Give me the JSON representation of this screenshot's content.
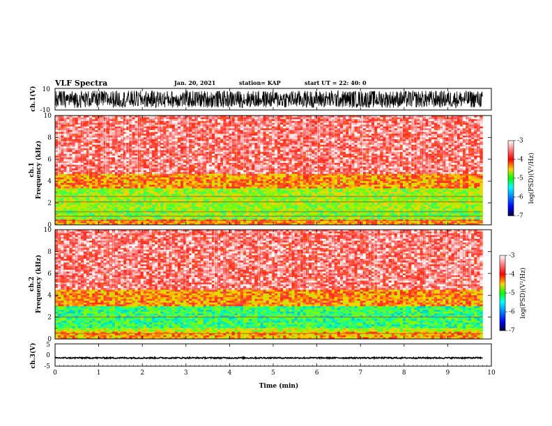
{
  "header": {
    "title": "VLF Spectra",
    "date": "Jan. 20, 2021",
    "station": "station= KAP",
    "start": "start  UT =   22: 40: 0"
  },
  "chart_data": [
    {
      "type": "line",
      "panel": "ch1-waveform",
      "ylabel": "ch.1(V)",
      "yticks": [
        "10",
        "-10"
      ],
      "ylim": [
        -10,
        10
      ],
      "xlim": [
        0,
        10
      ],
      "description_of_signal": "dense broadband waveform spanning roughly -8 to +8 V",
      "envelope_v": [
        -8,
        8
      ]
    },
    {
      "type": "heatmap",
      "panel": "ch1-spectrogram",
      "ylabel_line1": "ch.1",
      "ylabel_line2": "Frequency  (kHz)",
      "ylim": [
        0,
        10
      ],
      "yticks": [
        "0",
        "2",
        "4",
        "6",
        "8",
        "10"
      ],
      "xlim": [
        0,
        10
      ],
      "data_end_min": 9.8,
      "bands": [
        {
          "f_lo": 0.0,
          "f_hi": 0.5,
          "log_psd": -4.0
        },
        {
          "f_lo": 0.5,
          "f_hi": 1.3,
          "log_psd": -4.7
        },
        {
          "f_lo": 1.3,
          "f_hi": 3.4,
          "log_psd": -4.6
        },
        {
          "f_lo": 3.4,
          "f_hi": 4.7,
          "log_psd": -4.0
        },
        {
          "f_lo": 4.7,
          "f_hi": 10.0,
          "log_psd": -3.4
        }
      ],
      "lines_khz": [
        0.4,
        0.8,
        1.2,
        2.1,
        2.6
      ],
      "colorbar": {
        "label": "log(PSD)(V²/Hz)",
        "ticks": [
          "-3",
          "-4",
          "-5",
          "-6",
          "-7"
        ],
        "range": [
          -7,
          -3
        ]
      }
    },
    {
      "type": "heatmap",
      "panel": "ch2-spectrogram",
      "ylabel_line1": "ch.2",
      "ylabel_line2": "Frequency  (kHz)",
      "ylim": [
        0,
        10
      ],
      "yticks": [
        "0",
        "2",
        "4",
        "6",
        "8",
        "10"
      ],
      "xlim": [
        0,
        10
      ],
      "data_end_min": 9.8,
      "bands": [
        {
          "f_lo": 0.0,
          "f_hi": 0.6,
          "log_psd": -4.1
        },
        {
          "f_lo": 0.6,
          "f_hi": 1.0,
          "log_psd": -4.5
        },
        {
          "f_lo": 1.0,
          "f_hi": 3.0,
          "log_psd": -5.0
        },
        {
          "f_lo": 3.0,
          "f_hi": 4.5,
          "log_psd": -4.0
        },
        {
          "f_lo": 4.5,
          "f_hi": 10.0,
          "log_psd": -3.4
        }
      ],
      "lines_khz": [
        0.5,
        2.0
      ],
      "colorbar": {
        "label": "log(PSD)(V²/Hz)",
        "ticks": [
          "-3",
          "-4",
          "-5",
          "-6",
          "-7"
        ],
        "range": [
          -7,
          -3
        ]
      }
    },
    {
      "type": "line",
      "panel": "ch3-waveform",
      "ylabel": "ch.3(V)",
      "yticks": [
        "5",
        "0",
        "-5"
      ],
      "ylim": [
        -5,
        5
      ],
      "xlim": [
        0,
        10
      ],
      "envelope_v": [
        -1.6,
        -1.0
      ],
      "xlabel": "Time  (min)",
      "xticks": [
        "0",
        "1",
        "2",
        "3",
        "4",
        "5",
        "6",
        "7",
        "8",
        "9",
        "10"
      ]
    }
  ]
}
